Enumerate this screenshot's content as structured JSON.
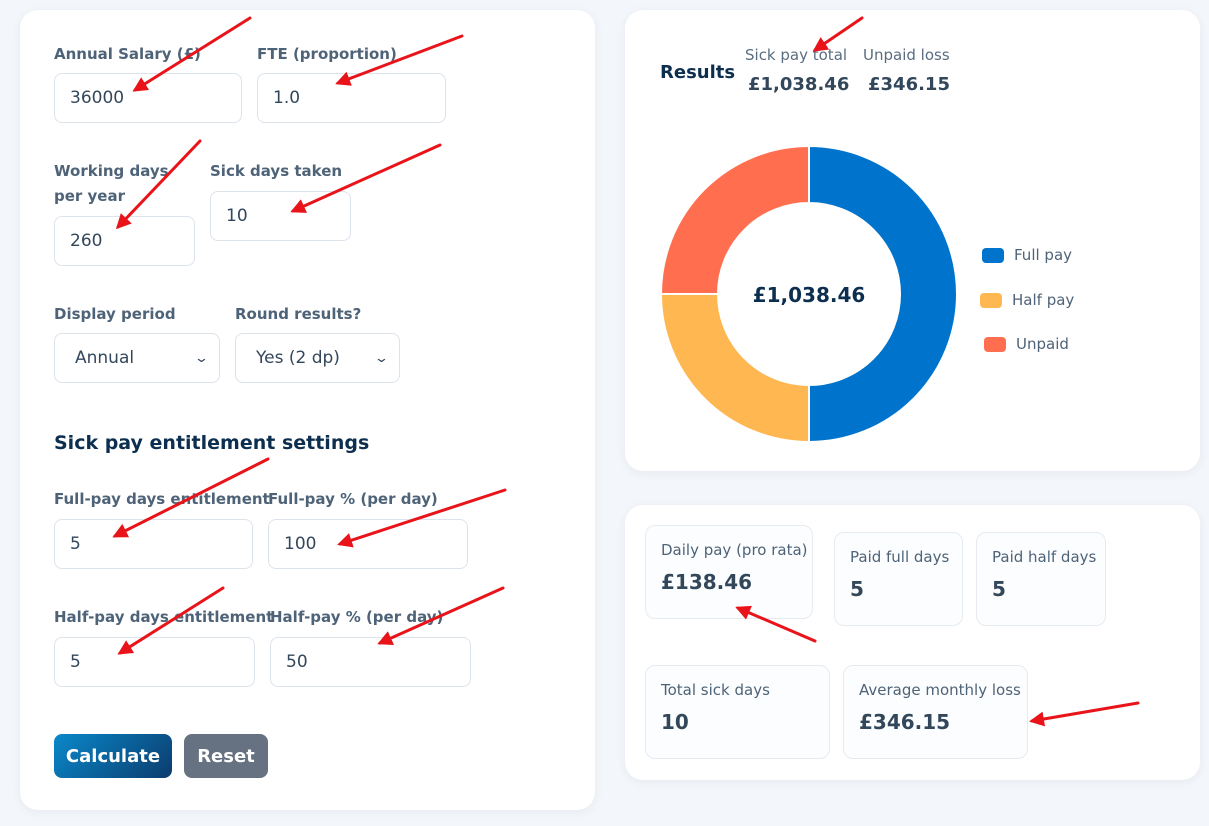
{
  "form": {
    "annual_salary": {
      "label": "Annual Salary (£)",
      "value": "36000"
    },
    "fte": {
      "label": "FTE (proportion)",
      "value": "1.0"
    },
    "working_days": {
      "label": "Working days per year",
      "value": "260"
    },
    "sick_days": {
      "label": "Sick days taken",
      "value": "10"
    },
    "display_period": {
      "label": "Display period",
      "value": "Annual"
    },
    "round_results": {
      "label": "Round results?",
      "value": "Yes (2 dp)"
    },
    "section_title": "Sick pay entitlement settings",
    "full_pay_days": {
      "label": "Full-pay days entitlement",
      "value": "5"
    },
    "full_pay_pct": {
      "label": "Full-pay % (per day)",
      "value": "100"
    },
    "half_pay_days": {
      "label": "Half-pay days entitlement",
      "value": "5"
    },
    "half_pay_pct": {
      "label": "Half-pay % (per day)",
      "value": "50"
    },
    "calculate_label": "Calculate",
    "reset_label": "Reset"
  },
  "results": {
    "title": "Results",
    "sick_pay_total_label": "Sick pay total",
    "sick_pay_total_value": "£1,038.46",
    "unpaid_loss_label": "Unpaid loss",
    "unpaid_loss_value": "£346.15",
    "donut_center": "£1,038.46",
    "legend": [
      {
        "label": "Full pay",
        "color": "#0073cc"
      },
      {
        "label": "Half pay",
        "color": "#ffb752"
      },
      {
        "label": "Unpaid",
        "color": "#ff6f4f"
      }
    ]
  },
  "chart_data": {
    "type": "pie",
    "style": "donut",
    "categories": [
      "Full pay",
      "Half pay",
      "Unpaid"
    ],
    "values": [
      692.31,
      346.15,
      346.15
    ],
    "colors": [
      "#0073cc",
      "#ffb752",
      "#ff6f4f"
    ],
    "center_label": "£1,038.46",
    "legend_position": "right"
  },
  "stats": {
    "daily_pay": {
      "label": "Daily pay (pro rata)",
      "value": "£138.46"
    },
    "paid_full_days": {
      "label": "Paid full days",
      "value": "5"
    },
    "paid_half_days": {
      "label": "Paid half days",
      "value": "5"
    },
    "total_sick_days": {
      "label": "Total sick days",
      "value": "10"
    },
    "avg_monthly_loss": {
      "label": "Average monthly loss",
      "value": "£346.15"
    }
  },
  "annotation_color": "#e8141a"
}
